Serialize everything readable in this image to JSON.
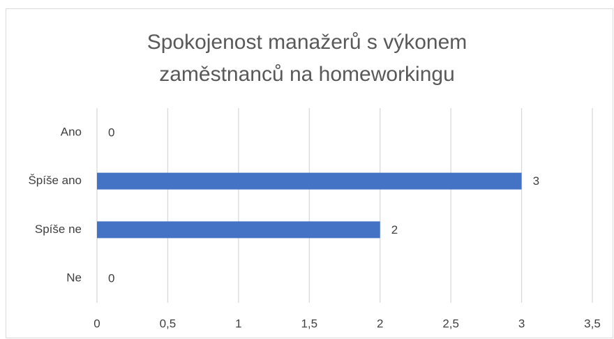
{
  "chart_data": {
    "type": "hbar",
    "title": [
      "Spokojenost manažerů s výkonem",
      "zaměstnanců na homeworkingu"
    ],
    "categories": [
      "Ano",
      "Špíše ano",
      "Spíše ne",
      "Ne"
    ],
    "values": [
      0,
      3,
      2,
      0
    ],
    "color": "#4472c4",
    "xlim": [
      0,
      3.5
    ],
    "xticks": [
      0,
      {
        "value": 0.5,
        "label": "0,5"
      },
      1,
      {
        "value": 1.5,
        "label": "1,5"
      },
      2,
      {
        "value": 2.5,
        "label": "2,5"
      },
      3,
      {
        "value": 3.5,
        "label": "3,5"
      }
    ],
    "grid": true
  }
}
